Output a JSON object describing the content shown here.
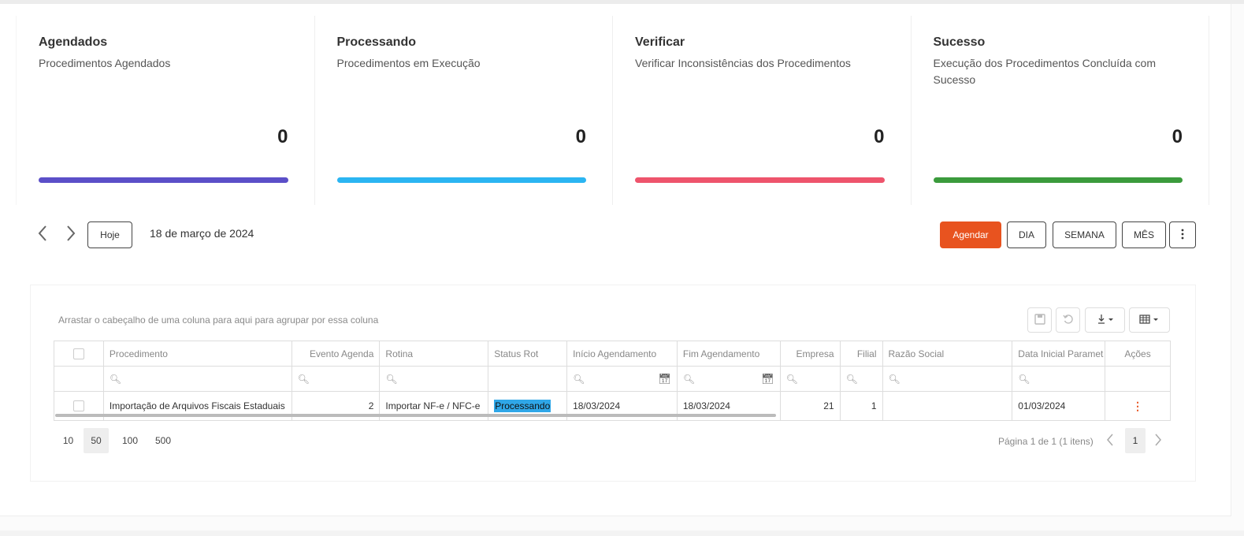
{
  "cards": [
    {
      "title": "Agendados",
      "subtitle": "Procedimentos Agendados",
      "count": "0",
      "color": "#5b4fc8"
    },
    {
      "title": "Processando",
      "subtitle": "Procedimentos em Execução",
      "count": "0",
      "color": "#2bb5f2"
    },
    {
      "title": "Verificar",
      "subtitle": "Verificar Inconsistências dos Procedimentos",
      "count": "0",
      "color": "#ee546c"
    },
    {
      "title": "Sucesso",
      "subtitle": "Execução dos Procedimentos Concluída com Sucesso",
      "count": "0",
      "color": "#3b9b3c"
    }
  ],
  "calendar": {
    "prev_icon": "chevron-left-icon",
    "next_icon": "chevron-right-icon",
    "today_label": "Hoje",
    "date_label": "18 de março de 2024",
    "schedule_label": "Agendar",
    "day_label": "DIA",
    "week_label": "SEMANA",
    "month_label": "MÊS",
    "more_icon": "more-vertical-icon"
  },
  "grid": {
    "group_hint": "Arrastar o cabeçalho de uma coluna para aqui para agrupar por essa coluna",
    "toolbar_icons": [
      "save-icon",
      "undo-icon",
      "download-icon",
      "column-chooser-icon"
    ],
    "headers": [
      "Procedimento",
      "Evento Agenda",
      "Rotina",
      "Status Rot",
      "Início Agendamento",
      "Fim Agendamento",
      "Empresa",
      "Filial",
      "Razão Social",
      "Data Inicial Paramet",
      "Ações"
    ],
    "rows": [
      {
        "procedimento": "Importação de Arquivos Fiscais Estaduais",
        "evento": "2",
        "rotina": "Importar NF-e / NFC-e",
        "status": "Processando",
        "inicio": "18/03/2024",
        "fim": "18/03/2024",
        "empresa": "21",
        "filial": "1",
        "razao": "",
        "data_inicial": "01/03/2024",
        "acoes": "⋮"
      }
    ]
  },
  "pager": {
    "sizes": [
      "10",
      "50",
      "100",
      "500"
    ],
    "active_size": "50",
    "info": "Página 1 de 1 (1 itens)",
    "page": "1"
  }
}
